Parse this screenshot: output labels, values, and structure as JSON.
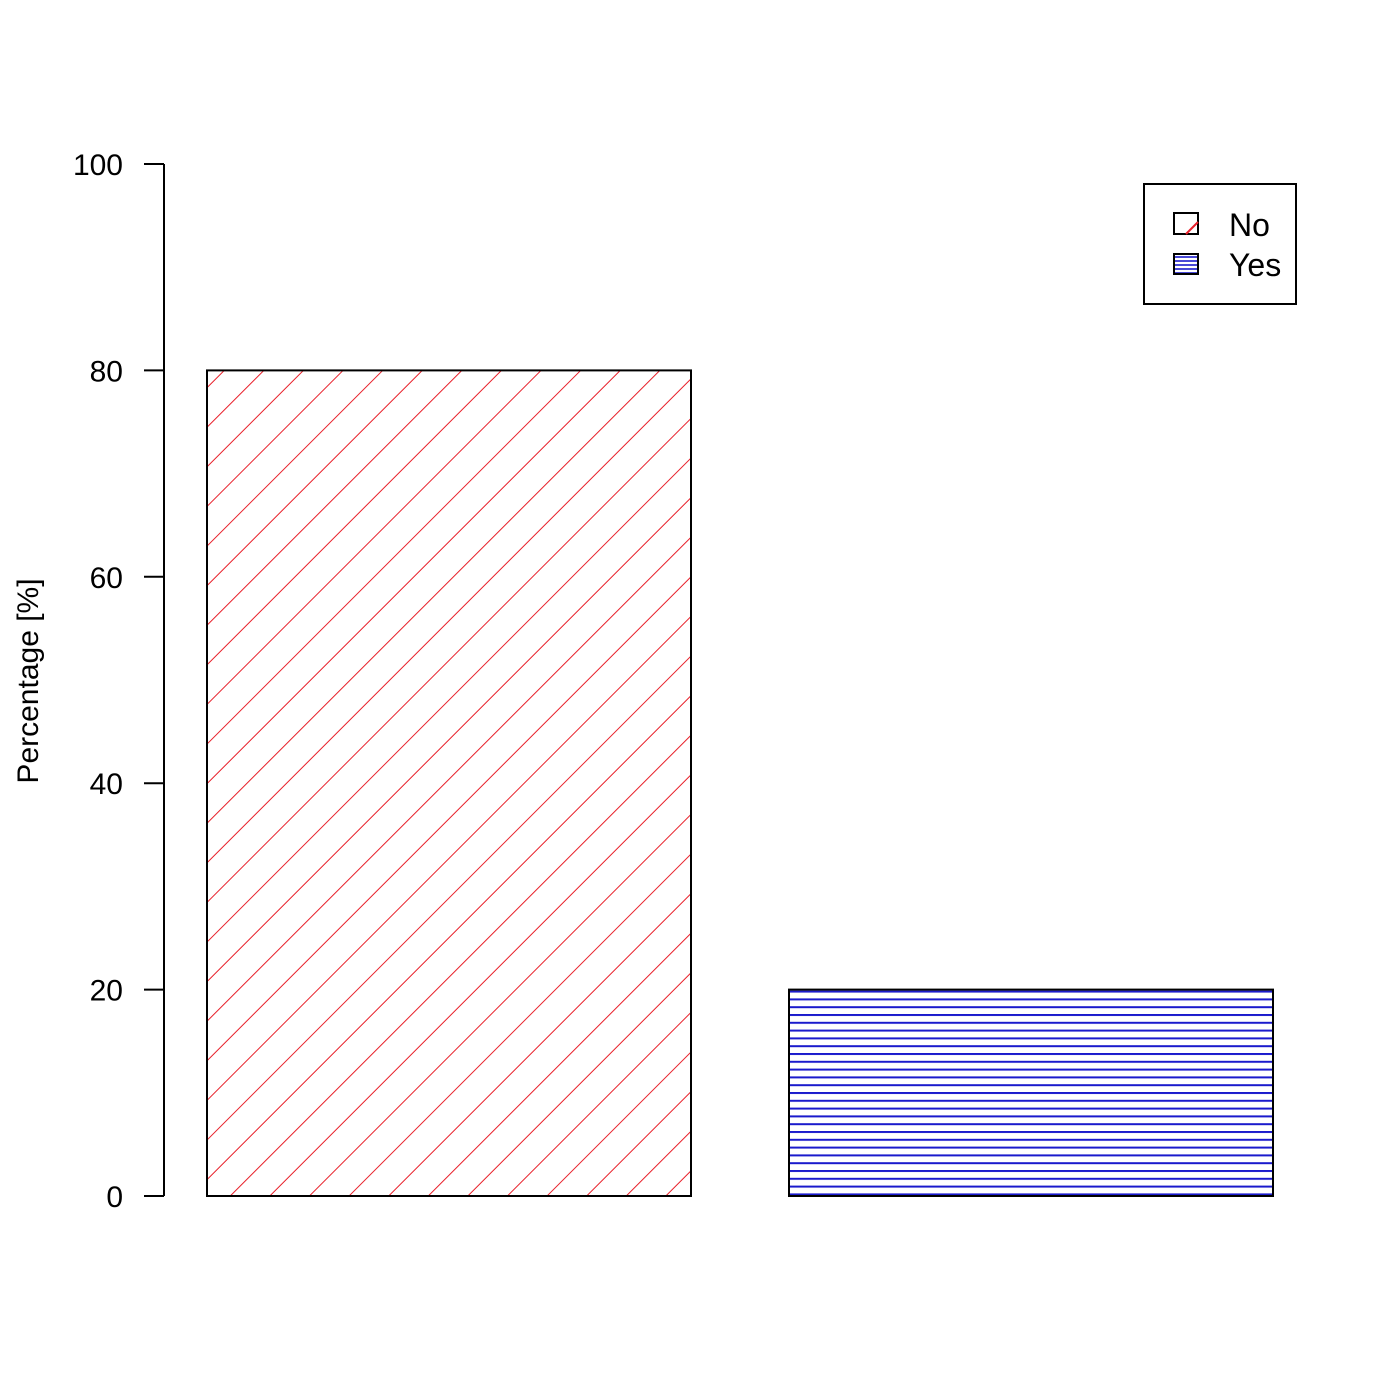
{
  "chart_data": {
    "type": "bar",
    "categories": [
      "No",
      "Yes"
    ],
    "values": [
      80,
      20
    ],
    "ylabel": "Percentage [%]",
    "xlabel": "",
    "ylim": [
      0,
      100
    ],
    "yticks": [
      "0",
      "20",
      "40",
      "60",
      "80",
      "100"
    ],
    "grid": false,
    "legend": {
      "position": "top-right",
      "entries": [
        {
          "label": "No",
          "color": "#e8202a",
          "pattern": "diagonal-hatch"
        },
        {
          "label": "Yes",
          "color": "#1a1acc",
          "pattern": "horizontal-hatch"
        }
      ]
    }
  }
}
